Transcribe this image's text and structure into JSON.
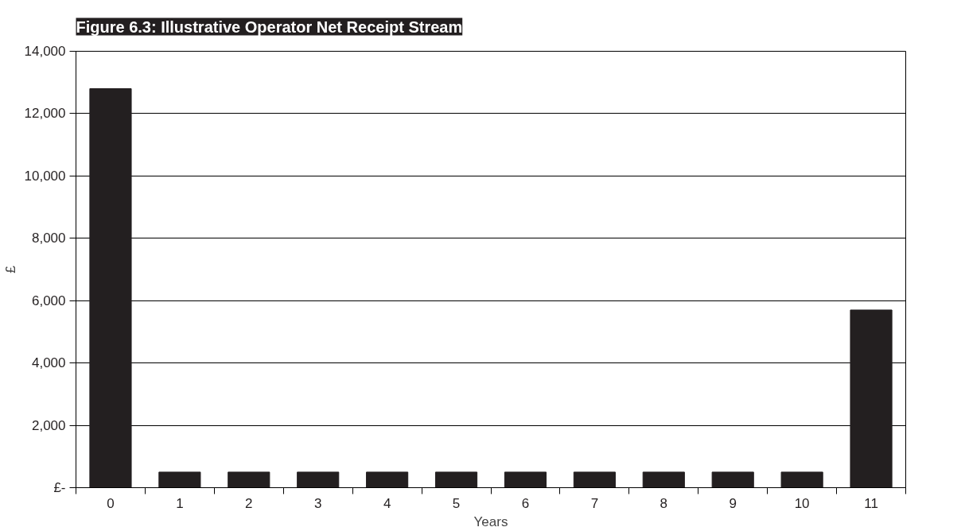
{
  "chart_data": {
    "type": "bar",
    "title": "Figure 6.3: Illustrative Operator Net Receipt Stream",
    "xlabel": "Years",
    "ylabel": "£",
    "categories": [
      "0",
      "1",
      "2",
      "3",
      "4",
      "5",
      "6",
      "7",
      "8",
      "9",
      "10",
      "11"
    ],
    "values": [
      12800,
      500,
      500,
      500,
      500,
      500,
      500,
      500,
      500,
      500,
      500,
      5700
    ],
    "color": "#231f20",
    "ylim": [
      0,
      14000
    ],
    "yticks": [
      {
        "value": 0,
        "label": "£-"
      },
      {
        "value": 2000,
        "label": "2,000"
      },
      {
        "value": 4000,
        "label": "4,000"
      },
      {
        "value": 6000,
        "label": "6,000"
      },
      {
        "value": 8000,
        "label": "8,000"
      },
      {
        "value": 10000,
        "label": "10,000"
      },
      {
        "value": 12000,
        "label": "12,000"
      },
      {
        "value": 14000,
        "label": "14,000"
      }
    ],
    "grid": "y"
  }
}
